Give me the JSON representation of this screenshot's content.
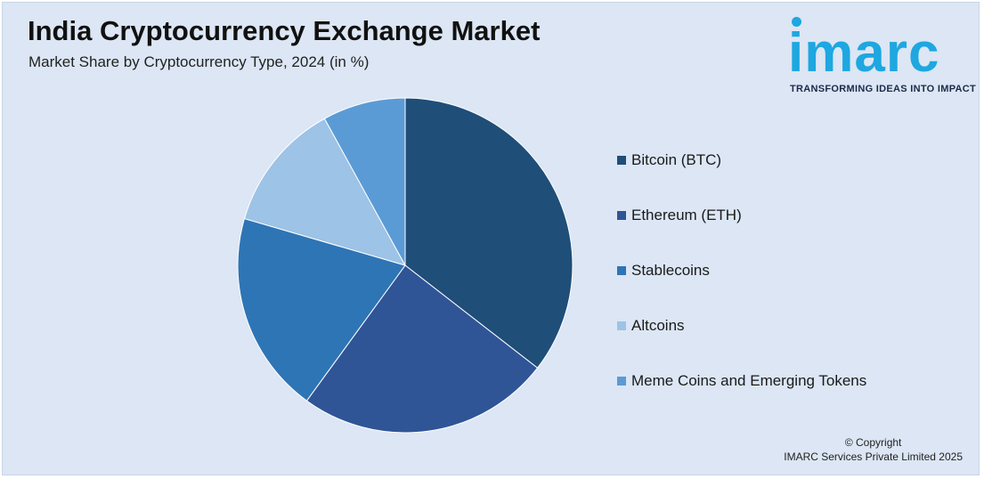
{
  "header": {
    "title": "India Cryptocurrency Exchange Market",
    "subtitle": "Market Share by Cryptocurrency Type, 2024 (in %)"
  },
  "logo": {
    "wordmark": "imarc",
    "tagline": "TRANSFORMING IDEAS INTO IMPACT",
    "color": "#1ea7e0"
  },
  "chart_data": {
    "type": "pie",
    "title": "India Cryptocurrency Exchange Market",
    "subtitle": "Market Share by Cryptocurrency Type, 2024 (in %)",
    "categories": [
      "Bitcoin (BTC)",
      "Ethereum (ETH)",
      "Stablecoins",
      "Altcoins",
      "Meme Coins and Emerging Tokens"
    ],
    "values": [
      35.5,
      24.5,
      19.5,
      12.5,
      8.0
    ],
    "colors": [
      "#1f4e79",
      "#2f5597",
      "#2e75b6",
      "#9dc3e6",
      "#5b9bd5"
    ],
    "legend_position": "right"
  },
  "footer": {
    "copyright_line1": "© Copyright",
    "copyright_line2": "IMARC Services Private Limited 2025"
  }
}
